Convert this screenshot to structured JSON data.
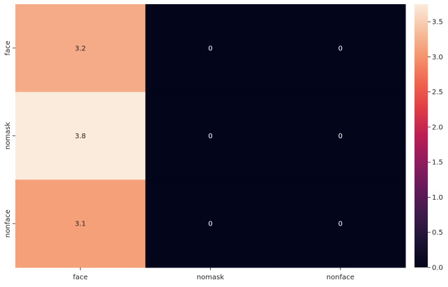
{
  "chart_data": {
    "type": "heatmap",
    "title": "",
    "xlabel": "",
    "ylabel": "",
    "x_categories": [
      "face",
      "nomask",
      "nonface"
    ],
    "y_categories": [
      "face",
      "nomask",
      "nonface"
    ],
    "values": [
      [
        3.2,
        0,
        0
      ],
      [
        3.8,
        0,
        0
      ],
      [
        3.1,
        0,
        0
      ]
    ],
    "cell_labels": [
      [
        "3.2",
        "0",
        "0"
      ],
      [
        "3.8",
        "0",
        "0"
      ],
      [
        "3.1",
        "0",
        "0"
      ]
    ],
    "colorbar": {
      "vmin": 0,
      "vmax": 3.75,
      "ticks": [
        0,
        0.5,
        1.0,
        1.5,
        2.0,
        2.5,
        3.0,
        3.5
      ],
      "tick_labels": [
        "0.0",
        "0.5",
        "1.0",
        "1.5",
        "2.0",
        "2.5",
        "3.0",
        "3.5"
      ],
      "colormap": "rocket",
      "placement": "right"
    },
    "annotation_colors": {
      "on_light": "#262626",
      "on_dark": "#ffffff"
    },
    "grid": false
  }
}
